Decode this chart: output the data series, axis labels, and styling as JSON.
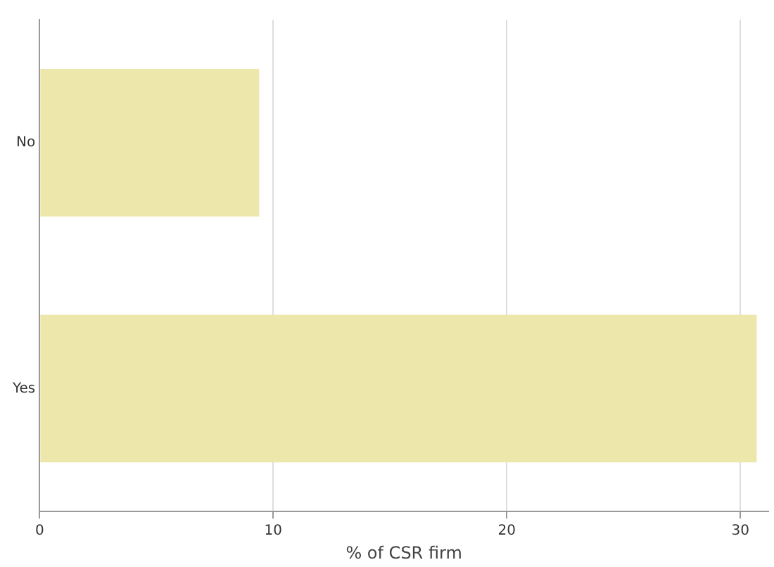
{
  "chart_data": {
    "type": "bar",
    "orientation": "horizontal",
    "xlabel": "% of CSR firm",
    "categories": [
      "No",
      "Yes"
    ],
    "values": [
      9.4,
      30.7
    ],
    "color": "#ede7ab",
    "xlim": [
      0,
      31.2
    ],
    "xticks": [
      0,
      10,
      20,
      30
    ],
    "grid": "x"
  }
}
